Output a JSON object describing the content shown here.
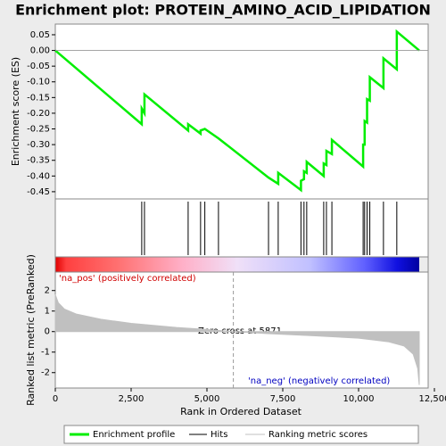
{
  "chart_data": [
    {
      "type": "line",
      "title": "Enrichment plot: PROTEIN_AMINO_ACID_LIPIDATION",
      "ylabel": "Enrichment score (ES)",
      "xlim": [
        0,
        12500
      ],
      "ylim": [
        -0.473,
        0.084
      ],
      "yticks": [
        0.05,
        {
          "value": 0,
          "label": "0.00"
        },
        -0.05,
        {
          "value": -0.1,
          "label": "-0.10"
        },
        -0.15,
        {
          "value": -0.2,
          "label": "-0.20"
        },
        -0.25,
        {
          "value": -0.3,
          "label": "-0.30"
        },
        -0.35,
        {
          "value": -0.4,
          "label": "-0.40"
        },
        -0.45
      ],
      "series": [
        {
          "name": "Enrichment profile",
          "color": "#00ee00",
          "x": [
            0,
            2850,
            2850,
            2940,
            2940,
            4380,
            4380,
            4790,
            4790,
            4930,
            5380,
            7030,
            7350,
            7350,
            8100,
            8100,
            8200,
            8200,
            8290,
            8290,
            8850,
            8850,
            8940,
            8940,
            9120,
            9120,
            10150,
            10150,
            10200,
            10200,
            10280,
            10280,
            10370,
            10370,
            10820,
            10820,
            11260,
            11260,
            12000
          ],
          "values": [
            0,
            -0.235,
            -0.185,
            -0.2,
            -0.14,
            -0.255,
            -0.235,
            -0.265,
            -0.255,
            -0.25,
            -0.28,
            -0.405,
            -0.425,
            -0.39,
            -0.445,
            -0.415,
            -0.41,
            -0.385,
            -0.39,
            -0.355,
            -0.4,
            -0.36,
            -0.365,
            -0.32,
            -0.33,
            -0.285,
            -0.37,
            -0.3,
            -0.3,
            -0.225,
            -0.23,
            -0.155,
            -0.16,
            -0.085,
            -0.12,
            -0.025,
            -0.06,
            0.06,
            0
          ]
        }
      ],
      "hits": {
        "name": "Hits",
        "color": "#000000",
        "x": [
          2850,
          2940,
          4380,
          4790,
          4930,
          5380,
          7030,
          7350,
          8100,
          8200,
          8290,
          8850,
          8940,
          9120,
          10150,
          10200,
          10280,
          10370,
          10820,
          11260
        ]
      }
    },
    {
      "type": "area",
      "xlabel": "Rank in Ordered Dataset",
      "ylabel": "Ranked list metric (PreRanked)",
      "xlim": [
        0,
        12500
      ],
      "ylim": [
        -2.75,
        2.9
      ],
      "xticks": [
        0,
        {
          "value": 2500,
          "label": "2,500"
        },
        {
          "value": 5000,
          "label": "5,000"
        },
        {
          "value": 7500,
          "label": "7,500"
        },
        {
          "value": 10000,
          "label": "10,000"
        },
        {
          "value": 12500,
          "label": "12,500"
        }
      ],
      "yticks": [
        -2,
        -1,
        0,
        1,
        2
      ],
      "series": [
        {
          "name": "Ranking metric scores",
          "color": "#c0c0c0",
          "x": [
            0,
            100,
            300,
            700,
            1500,
            2500,
            4000,
            5000,
            5871,
            7000,
            8500,
            10000,
            11000,
            11500,
            11800,
            11950,
            12000
          ],
          "values": [
            1.8,
            1.4,
            1.1,
            0.85,
            0.6,
            0.4,
            0.2,
            0.1,
            0,
            -0.1,
            -0.2,
            -0.32,
            -0.5,
            -0.7,
            -1.1,
            -1.8,
            -2.6
          ]
        }
      ],
      "zero_cross": 5871,
      "annotations": [
        "'na_pos' (positively correlated)",
        "Zero cross at 5871",
        "'na_neg' (negatively correlated)"
      ]
    }
  ]
}
